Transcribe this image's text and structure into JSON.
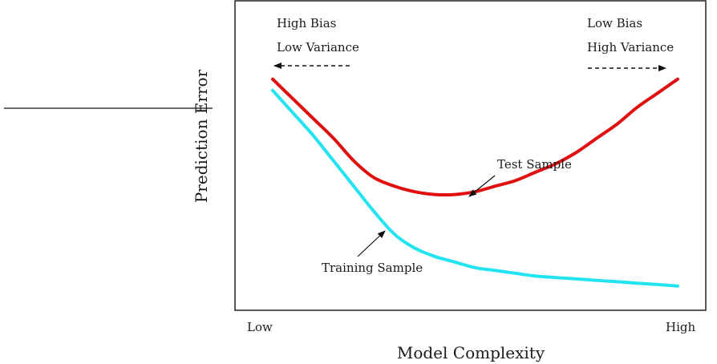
{
  "chart_data": {
    "type": "line",
    "title": "",
    "xlabel": "Model Complexity",
    "ylabel": "Prediction Error",
    "x_ticks": [
      "Low",
      "High"
    ],
    "xlim": [
      0,
      1
    ],
    "ylim": [
      0,
      1
    ],
    "grid": false,
    "legend": "none",
    "series": [
      {
        "name": "Test Sample",
        "color": "#e01010",
        "points": [
          [
            0.0,
            0.79
          ],
          [
            0.05,
            0.72
          ],
          [
            0.1,
            0.65
          ],
          [
            0.15,
            0.58
          ],
          [
            0.2,
            0.5
          ],
          [
            0.25,
            0.44
          ],
          [
            0.3,
            0.41
          ],
          [
            0.35,
            0.39
          ],
          [
            0.4,
            0.38
          ],
          [
            0.45,
            0.38
          ],
          [
            0.5,
            0.39
          ],
          [
            0.55,
            0.41
          ],
          [
            0.6,
            0.43
          ],
          [
            0.65,
            0.46
          ],
          [
            0.7,
            0.49
          ],
          [
            0.75,
            0.53
          ],
          [
            0.8,
            0.58
          ],
          [
            0.85,
            0.63
          ],
          [
            0.9,
            0.69
          ],
          [
            0.95,
            0.74
          ],
          [
            1.0,
            0.79
          ]
        ]
      },
      {
        "name": "Training Sample",
        "color": "#22e4f0",
        "points": [
          [
            0.0,
            0.75
          ],
          [
            0.05,
            0.67
          ],
          [
            0.1,
            0.59
          ],
          [
            0.15,
            0.5
          ],
          [
            0.2,
            0.41
          ],
          [
            0.25,
            0.32
          ],
          [
            0.3,
            0.24
          ],
          [
            0.35,
            0.19
          ],
          [
            0.4,
            0.16
          ],
          [
            0.45,
            0.14
          ],
          [
            0.5,
            0.12
          ],
          [
            0.55,
            0.11
          ],
          [
            0.6,
            0.1
          ],
          [
            0.65,
            0.09
          ],
          [
            0.7,
            0.085
          ],
          [
            0.75,
            0.08
          ],
          [
            0.8,
            0.075
          ],
          [
            0.85,
            0.07
          ],
          [
            0.9,
            0.065
          ],
          [
            0.95,
            0.06
          ],
          [
            1.0,
            0.055
          ]
        ]
      }
    ],
    "annotations": {
      "left": [
        "High Bias",
        "Low Variance"
      ],
      "right": [
        "Low Bias",
        "High Variance"
      ],
      "test_label": "Test Sample",
      "train_label": "Training Sample"
    }
  }
}
